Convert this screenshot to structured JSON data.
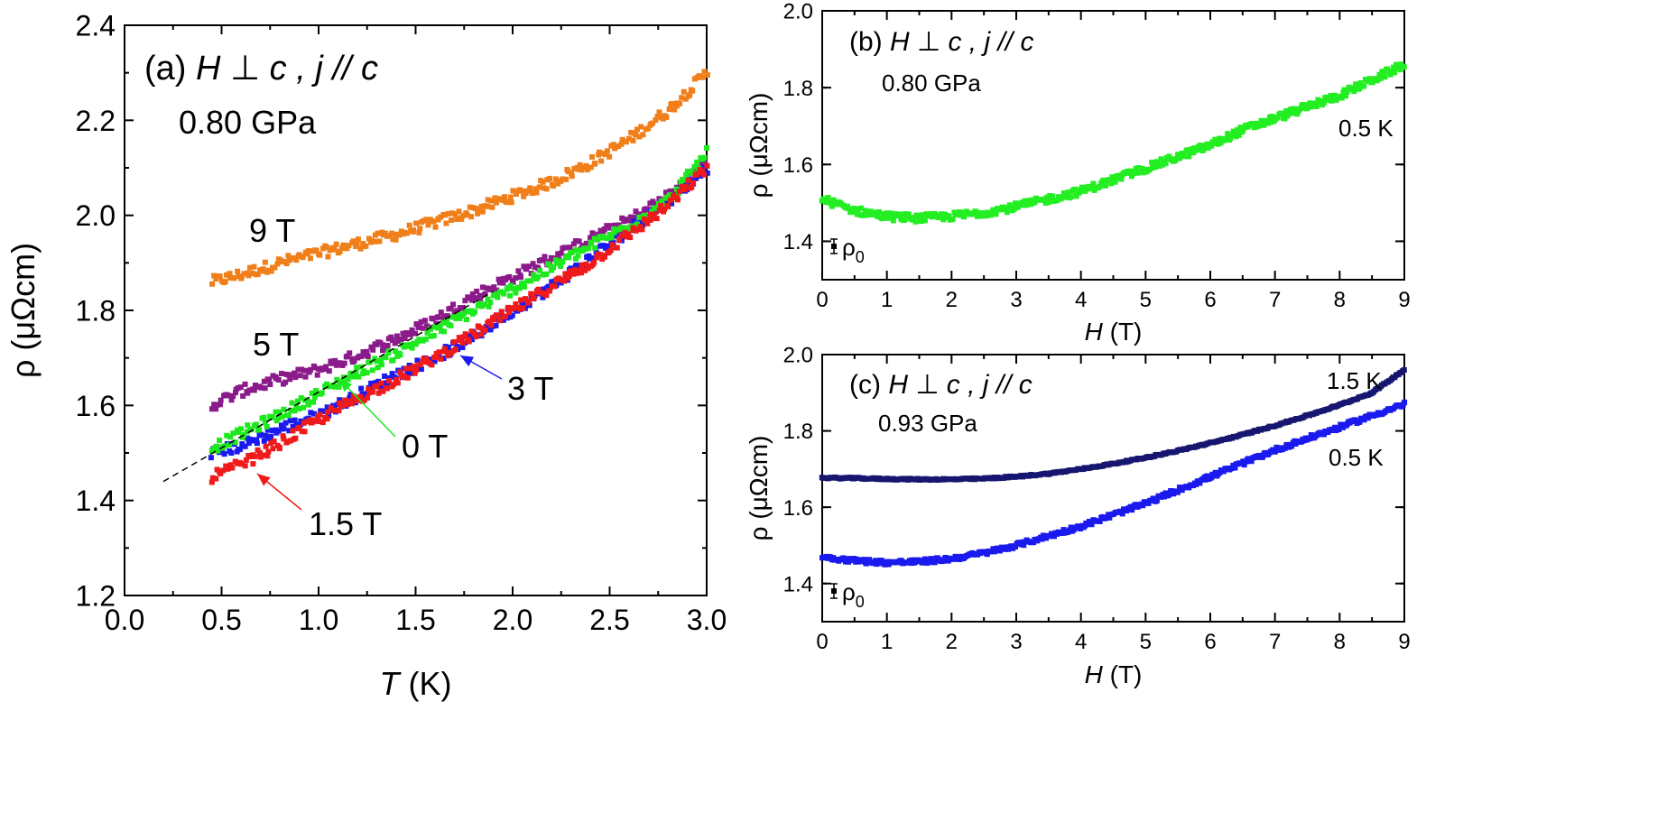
{
  "chart_data": [
    {
      "panel": "a",
      "type": "scatter",
      "title_label": "(a)",
      "condition": "H ⊥ c ,   j // c",
      "pressure": "0.80 GPa",
      "xlabel_var": "T",
      "xlabel_unit": " (K)",
      "ylabel": "ρ (μΩcm)",
      "xlim": [
        0.0,
        3.0
      ],
      "ylim": [
        1.2,
        2.4
      ],
      "xticks": [
        "0.0",
        "0.5",
        "1.0",
        "1.5",
        "2.0",
        "2.5",
        "3.0"
      ],
      "yticks": [
        "1.2",
        "1.4",
        "1.6",
        "1.8",
        "2.0",
        "2.2",
        "2.4"
      ],
      "series": [
        {
          "name": "9 T",
          "color": "#f07f1a",
          "x": [
            0.45,
            0.6,
            0.8,
            1.0,
            1.2,
            1.4,
            1.6,
            1.8,
            2.0,
            2.2,
            2.4,
            2.6,
            2.8,
            3.0
          ],
          "y": [
            1.86,
            1.875,
            1.9,
            1.92,
            1.94,
            1.96,
            1.985,
            2.01,
            2.04,
            2.07,
            2.11,
            2.16,
            2.22,
            2.3
          ]
        },
        {
          "name": "5 T",
          "color": "#8b1a8b",
          "x": [
            0.45,
            0.6,
            0.8,
            1.0,
            1.2,
            1.4,
            1.6,
            1.8,
            2.0,
            2.2,
            2.4,
            2.6,
            2.8,
            3.0
          ],
          "y": [
            1.6,
            1.63,
            1.655,
            1.675,
            1.705,
            1.74,
            1.78,
            1.83,
            1.87,
            1.91,
            1.95,
            1.99,
            2.04,
            2.11
          ]
        },
        {
          "name": "3 T",
          "color": "#1a1af0",
          "x": [
            0.45,
            0.6,
            0.8,
            1.0,
            1.2,
            1.4,
            1.6,
            1.8,
            2.0,
            2.2,
            2.4,
            2.6,
            2.8,
            3.0
          ],
          "y": [
            1.5,
            1.515,
            1.55,
            1.58,
            1.62,
            1.665,
            1.7,
            1.745,
            1.8,
            1.85,
            1.91,
            1.97,
            2.03,
            2.1
          ]
        },
        {
          "name": "0 T",
          "color": "#1ee81e",
          "x": [
            0.45,
            0.6,
            0.8,
            1.0,
            1.2,
            1.4,
            1.6,
            1.8,
            2.0,
            2.2,
            2.4,
            2.6,
            2.8,
            3.0
          ],
          "y": [
            1.51,
            1.54,
            1.58,
            1.625,
            1.67,
            1.71,
            1.755,
            1.8,
            1.845,
            1.89,
            1.935,
            1.98,
            2.03,
            2.13
          ]
        },
        {
          "name": "1.5 T",
          "color": "#f01a1a",
          "x": [
            0.45,
            0.6,
            0.8,
            1.0,
            1.2,
            1.4,
            1.6,
            1.8,
            2.0,
            2.2,
            2.4,
            2.6,
            2.8,
            3.0
          ],
          "y": [
            1.45,
            1.475,
            1.52,
            1.57,
            1.615,
            1.655,
            1.7,
            1.75,
            1.8,
            1.85,
            1.9,
            1.96,
            2.02,
            2.1
          ]
        }
      ],
      "fit_line": {
        "x": [
          0.2,
          1.9
        ],
        "y": [
          1.44,
          1.84
        ]
      },
      "labels": [
        "9 T",
        "5 T",
        "3 T",
        "0 T",
        "1.5 T"
      ]
    },
    {
      "panel": "b",
      "type": "scatter",
      "title_label": "(b)",
      "condition": "H ⊥ c ,   j // c",
      "pressure": "0.80 GPa",
      "xlabel_var": "H",
      "xlabel_unit": " (T)",
      "ylabel": "ρ (μΩcm)",
      "xlim": [
        0,
        9
      ],
      "ylim": [
        1.3,
        2.0
      ],
      "xticks": [
        "0",
        "1",
        "2",
        "3",
        "4",
        "5",
        "6",
        "7",
        "8",
        "9"
      ],
      "yticks": [
        "1.4",
        "1.6",
        "1.8",
        "2.0"
      ],
      "rho0_label": "ρ",
      "rho0_sub": "0",
      "series": [
        {
          "name": "0.5 K",
          "color": "#22ee22",
          "x": [
            0.0,
            0.5,
            1.0,
            1.5,
            2.0,
            2.5,
            3.0,
            3.5,
            4.0,
            4.5,
            5.0,
            5.5,
            6.0,
            6.5,
            7.0,
            7.5,
            8.0,
            8.5,
            9.0
          ],
          "y": [
            1.51,
            1.48,
            1.465,
            1.46,
            1.465,
            1.475,
            1.49,
            1.51,
            1.53,
            1.56,
            1.59,
            1.62,
            1.65,
            1.69,
            1.72,
            1.75,
            1.78,
            1.82,
            1.86
          ]
        }
      ],
      "labels": [
        "0.5 K"
      ]
    },
    {
      "panel": "c",
      "type": "scatter",
      "title_label": "(c)",
      "condition": "H ⊥ c ,   j // c",
      "pressure": "0.93 GPa",
      "xlabel_var": "H",
      "xlabel_unit": " (T)",
      "ylabel": "ρ (μΩcm)",
      "xlim": [
        0,
        9
      ],
      "ylim": [
        1.3,
        2.0
      ],
      "xticks": [
        "0",
        "1",
        "2",
        "3",
        "4",
        "5",
        "6",
        "7",
        "8",
        "9"
      ],
      "yticks": [
        "1.4",
        "1.6",
        "1.8",
        "2.0"
      ],
      "rho0_label": "ρ",
      "rho0_sub": "0",
      "series": [
        {
          "name": "1.5 K",
          "color": "#161670",
          "x": [
            0.0,
            0.5,
            1.0,
            1.5,
            2.0,
            2.5,
            3.0,
            3.5,
            4.0,
            4.5,
            5.0,
            5.5,
            6.0,
            6.5,
            7.0,
            7.5,
            8.0,
            8.5,
            9.0
          ],
          "y": [
            1.677,
            1.676,
            1.674,
            1.673,
            1.673,
            1.675,
            1.68,
            1.688,
            1.7,
            1.714,
            1.73,
            1.748,
            1.768,
            1.79,
            1.814,
            1.84,
            1.868,
            1.9,
            1.96
          ]
        },
        {
          "name": "0.5 K",
          "color": "#1a1aee",
          "x": [
            0.0,
            0.5,
            1.0,
            1.5,
            2.0,
            2.5,
            3.0,
            3.5,
            4.0,
            4.5,
            5.0,
            5.5,
            6.0,
            6.5,
            7.0,
            7.5,
            8.0,
            8.5,
            9.0
          ],
          "y": [
            1.47,
            1.46,
            1.455,
            1.457,
            1.465,
            1.48,
            1.5,
            1.525,
            1.55,
            1.58,
            1.61,
            1.645,
            1.68,
            1.715,
            1.75,
            1.78,
            1.81,
            1.84,
            1.87
          ]
        }
      ],
      "labels": [
        "1.5 K",
        "0.5 K"
      ]
    }
  ]
}
